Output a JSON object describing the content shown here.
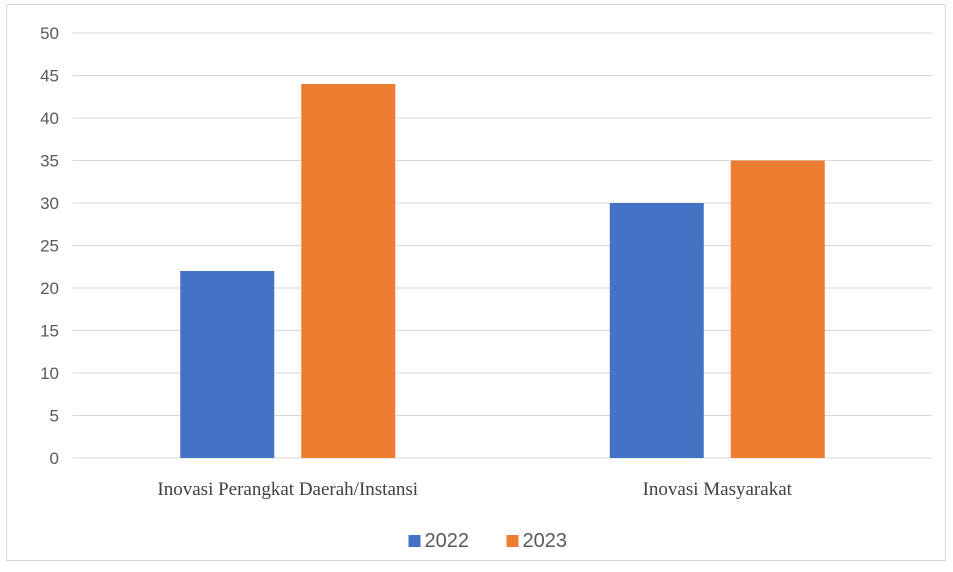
{
  "chart_data": {
    "type": "bar",
    "categories": [
      "Inovasi Perangkat Daerah/Instansi",
      "Inovasi Masyarakat"
    ],
    "series": [
      {
        "name": "2022",
        "values": [
          22,
          30
        ],
        "color": "#4472C4"
      },
      {
        "name": "2023",
        "values": [
          44,
          35
        ],
        "color": "#ED7D31"
      }
    ],
    "title": "",
    "xlabel": "",
    "ylabel": "",
    "ylim": [
      0,
      50
    ],
    "yticks": [
      "0",
      "5",
      "10",
      "15",
      "20",
      "25",
      "30",
      "35",
      "40",
      "45",
      "50"
    ],
    "grid": true,
    "legend_position": "bottom"
  }
}
